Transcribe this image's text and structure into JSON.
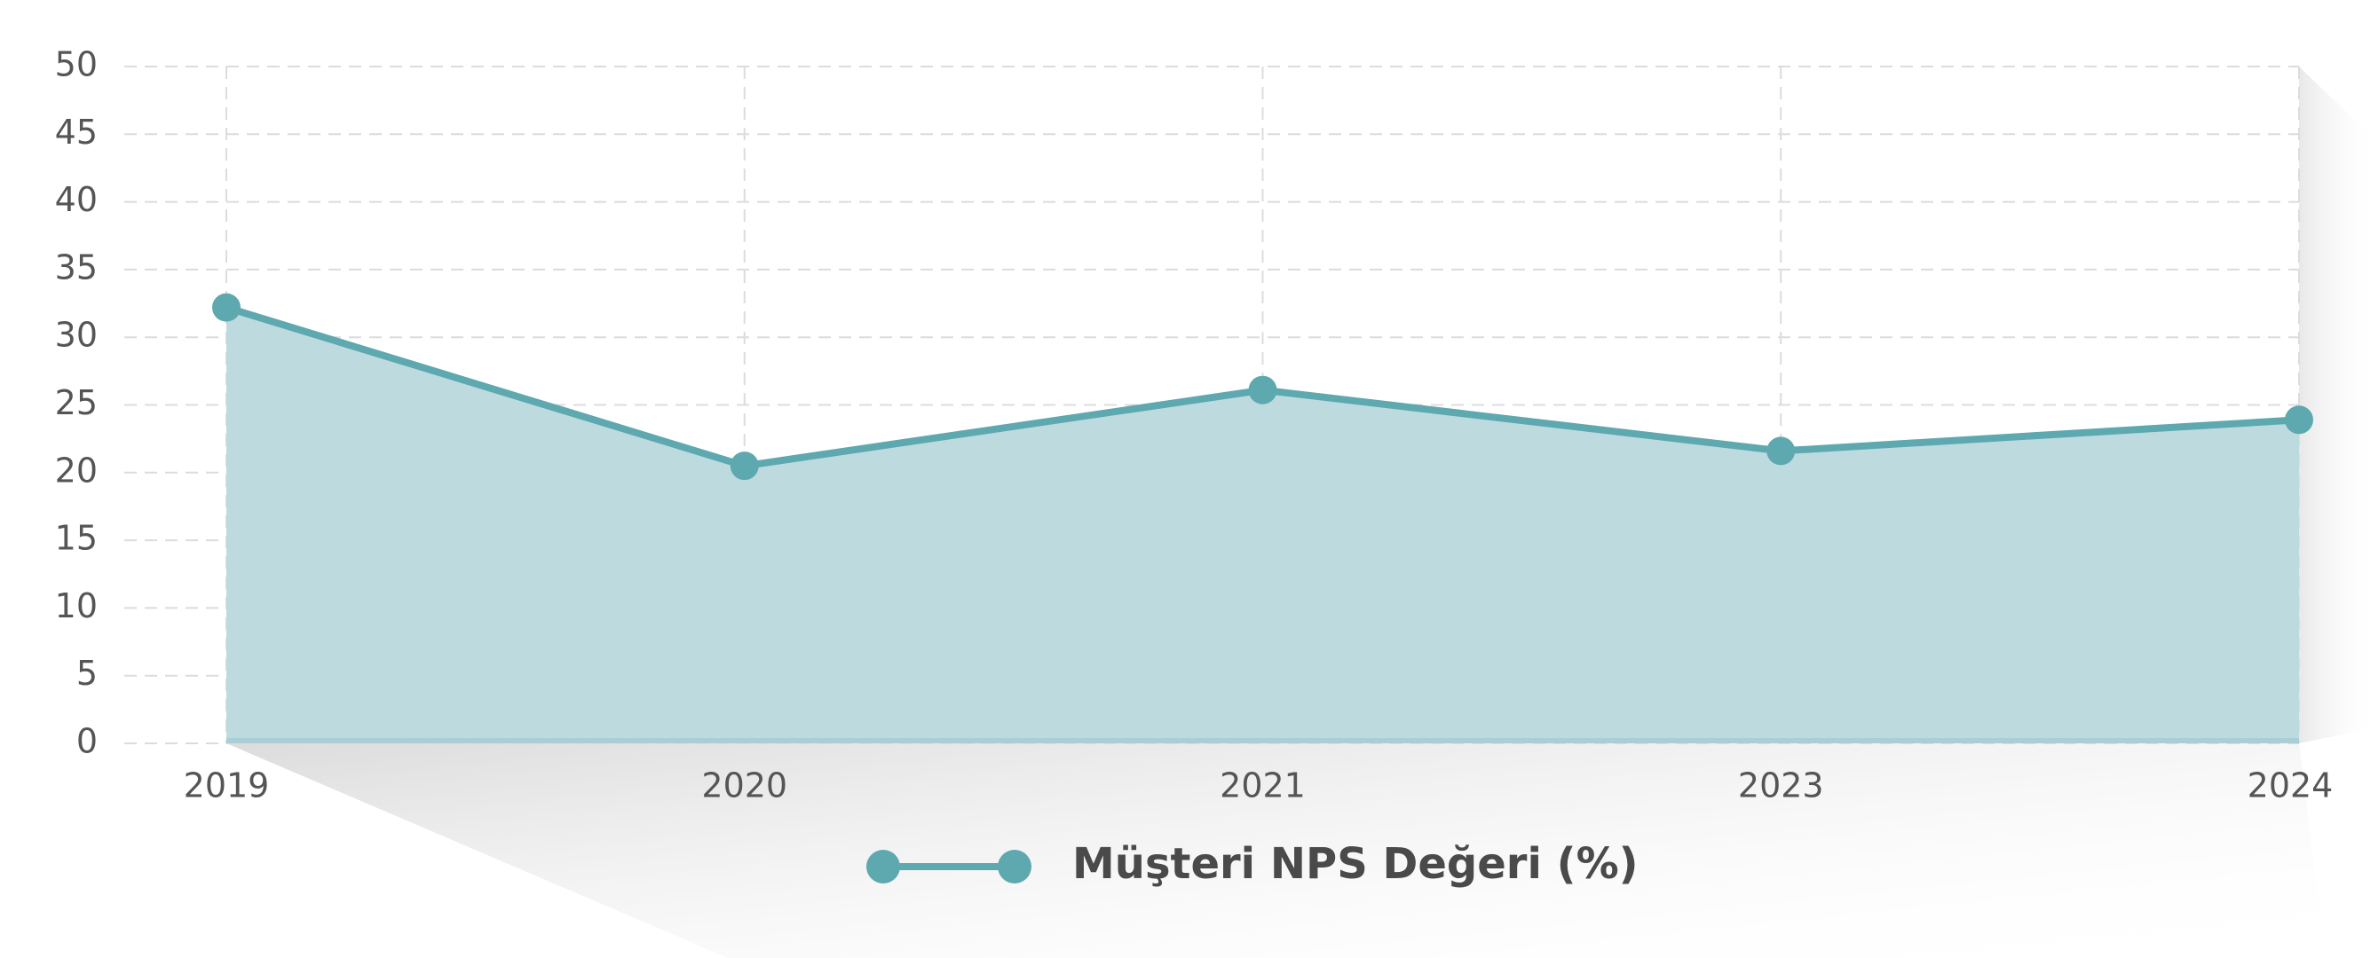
{
  "chart_data": {
    "type": "area",
    "categories": [
      "2019",
      "2020",
      "2021",
      "2023",
      "2024"
    ],
    "series": [
      {
        "name": "Müşteri NPS Değeri (%)",
        "values": [
          32.2,
          20.5,
          26.1,
          21.6,
          23.9
        ],
        "color": "#5ea8b0",
        "fill_color": "#bddbdf"
      }
    ],
    "ylim": [
      0,
      50
    ],
    "yticks": [
      "0",
      "5",
      "10",
      "15",
      "20",
      "25",
      "30",
      "35",
      "40",
      "45",
      "50"
    ],
    "grid": true,
    "legend_position": "bottom-center",
    "title": "",
    "xlabel": "",
    "ylabel": ""
  }
}
